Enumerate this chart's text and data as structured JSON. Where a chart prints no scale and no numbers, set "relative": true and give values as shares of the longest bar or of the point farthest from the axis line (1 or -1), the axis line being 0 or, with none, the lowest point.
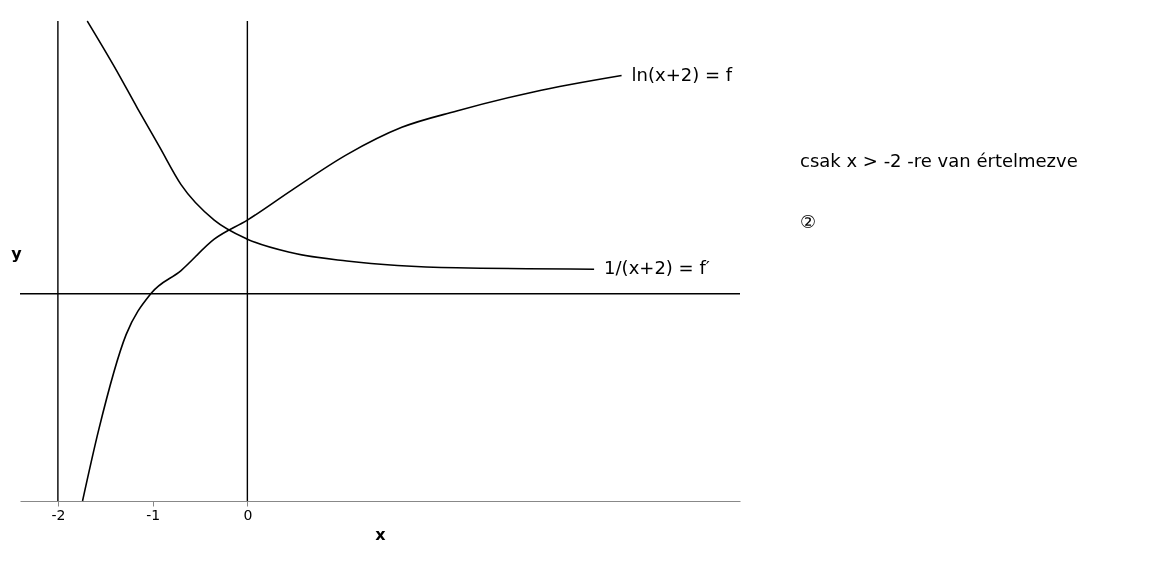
{
  "chart_data": {
    "type": "line",
    "relative": true,
    "xlabel": "x",
    "ylabel": "y",
    "xlim": [
      -2.4,
      5.2
    ],
    "xticks": [
      -2,
      -1,
      0
    ],
    "grid": false,
    "legend": false,
    "marker": "none",
    "line_style": "solid",
    "series": [
      {
        "name": "ln(x+2) = f",
        "color": "#000000",
        "x": [
          -1.74,
          -1.57,
          -1.28,
          -1.02,
          -0.7,
          -0.35,
          0,
          0.47,
          1.05,
          1.63,
          2.21,
          3.02,
          3.95
        ],
        "values": [
          -0.76,
          -0.5,
          -0.15,
          0,
          0.085,
          0.2,
          0.27,
          0.38,
          0.51,
          0.61,
          0.67,
          0.74,
          0.8
        ]
      },
      {
        "name": "1/(x+2) = f′",
        "color": "#000000",
        "x": [
          -1.69,
          -1.4,
          -1.16,
          -0.93,
          -0.7,
          -0.35,
          0,
          0.47,
          1.05,
          2.21,
          3.66
        ],
        "values": [
          1.0,
          0.83,
          0.68,
          0.54,
          0.4,
          0.27,
          0.2,
          0.15,
          0.12,
          0.095,
          0.09
        ]
      }
    ],
    "ref_lines": [
      {
        "axis": "x",
        "value": -2
      },
      {
        "axis": "x",
        "value": 0
      },
      {
        "axis": "y",
        "value": 0
      }
    ],
    "annotations": [
      "csak x > -2 -re van értelmezve",
      "②"
    ]
  }
}
